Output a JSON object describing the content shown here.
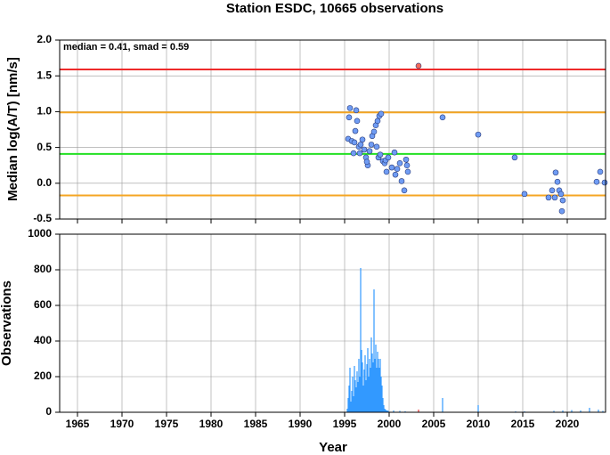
{
  "chart_data": [
    {
      "type": "scatter",
      "title": "Station ESDC, 10665 observations",
      "ylabel": "Median log(A/T) [nm/s]",
      "annotation": "median = 0.41, smad = 0.59",
      "xlim": [
        1963,
        2024.3
      ],
      "xticks": [
        1965,
        1970,
        1975,
        1980,
        1985,
        1990,
        1995,
        2000,
        2005,
        2010,
        2015,
        2020
      ],
      "ylim": [
        -0.5,
        2.0
      ],
      "yticks": [
        -0.5,
        {
          "value": 0,
          "label": "0.0"
        },
        0.5,
        {
          "value": 1,
          "label": "1.0"
        },
        1.5,
        {
          "value": 2,
          "label": "2.0"
        }
      ],
      "grid": true,
      "hlines": [
        {
          "value": 1.59,
          "color": "#ee2a2a"
        },
        {
          "value": 0.99,
          "color": "#f5a623"
        },
        {
          "value": 0.41,
          "color": "#22e022"
        },
        {
          "value": -0.17,
          "color": "#f5a623"
        }
      ],
      "series": [
        {
          "color": "#6f9cf4",
          "x": [
            1995.6,
            1995.5,
            1996.3,
            1995.4,
            1995.8,
            1996.1,
            1996.2,
            1996.4,
            1996.6,
            1996.8,
            1997.0,
            1996.0,
            1996.7,
            1997.2,
            1997.4,
            1997.6,
            1997.5,
            1997.8,
            1998.0,
            1998.1,
            1998.3,
            1998.5,
            1998.7,
            1998.9,
            1999.1,
            1998.6,
            1998.8,
            1999.0,
            1999.3,
            1999.5,
            1999.7,
            1999.6,
            1999.9,
            2000.3,
            2000.6,
            2000.7,
            2000.9,
            2001.2,
            2001.4,
            2001.7,
            2001.9,
            2002.0,
            2002.1,
            2006.0,
            2010.0,
            2014.1,
            2015.2,
            2017.9,
            2018.3,
            2018.7,
            2018.9,
            2019.1,
            2019.3,
            2019.5,
            2019.4,
            2018.6,
            2023.3,
            2023.7,
            2024.2
          ],
          "values": [
            1.05,
            0.92,
            1.02,
            0.62,
            0.59,
            0.57,
            0.73,
            0.87,
            0.51,
            0.54,
            0.61,
            0.42,
            0.42,
            0.47,
            0.36,
            0.25,
            0.3,
            0.45,
            0.54,
            0.66,
            0.72,
            0.81,
            0.87,
            0.94,
            0.97,
            0.51,
            0.36,
            0.4,
            0.31,
            0.28,
            0.16,
            0.32,
            0.36,
            0.22,
            0.43,
            0.12,
            0.2,
            0.28,
            0.03,
            -0.1,
            0.33,
            0.25,
            0.16,
            0.92,
            0.68,
            0.36,
            -0.15,
            -0.2,
            -0.1,
            0.15,
            0.02,
            -0.1,
            -0.15,
            -0.24,
            -0.39,
            -0.2,
            0.02,
            0.16,
            0.01
          ]
        },
        {
          "color": "#f36a5a",
          "x": [
            2003.3
          ],
          "values": [
            1.64
          ]
        }
      ]
    },
    {
      "type": "bar",
      "ylabel": "Observations",
      "xlabel": "Year",
      "xlim": [
        1963,
        2024.3
      ],
      "xticks": [
        1965,
        1970,
        1975,
        1980,
        1985,
        1990,
        1995,
        2000,
        2005,
        2010,
        2015,
        2020
      ],
      "ylim": [
        0,
        1000
      ],
      "yticks": [
        0,
        200,
        400,
        600,
        800,
        1000
      ],
      "grid": true,
      "series": [
        {
          "color": "#3399ff",
          "x": [
            1995.3,
            1995.4,
            1995.5,
            1995.6,
            1995.7,
            1995.8,
            1995.9,
            1996.0,
            1996.1,
            1996.2,
            1996.3,
            1996.4,
            1996.5,
            1996.6,
            1996.7,
            1996.8,
            1996.9,
            1997.0,
            1997.1,
            1997.2,
            1997.3,
            1997.4,
            1997.5,
            1997.6,
            1997.7,
            1997.8,
            1997.9,
            1998.0,
            1998.1,
            1998.2,
            1998.3,
            1998.4,
            1998.5,
            1998.6,
            1998.7,
            1998.8,
            1998.9,
            1999.0,
            1999.1,
            1999.2,
            1999.3,
            1999.4,
            1999.5,
            1999.6,
            1999.7,
            1999.8,
            1999.9,
            2000.5,
            2001.2,
            2001.8,
            2006.0,
            2010.0,
            2014.2,
            2015.2,
            2018.5,
            2019.5,
            2020.5,
            2021.5,
            2022.5,
            2023.5,
            2024.0
          ],
          "values": [
            20,
            80,
            150,
            250,
            60,
            120,
            200,
            90,
            260,
            180,
            140,
            230,
            170,
            300,
            200,
            810,
            350,
            280,
            150,
            240,
            320,
            180,
            270,
            360,
            200,
            300,
            250,
            420,
            330,
            280,
            690,
            300,
            380,
            250,
            340,
            300,
            250,
            300,
            200,
            150,
            80,
            40,
            20,
            15,
            10,
            10,
            8,
            10,
            8,
            6,
            80,
            40,
            5,
            5,
            8,
            10,
            12,
            10,
            25,
            15,
            8
          ]
        },
        {
          "color": "#ee3333",
          "x": [
            2003.3
          ],
          "values": [
            15
          ]
        }
      ]
    }
  ]
}
